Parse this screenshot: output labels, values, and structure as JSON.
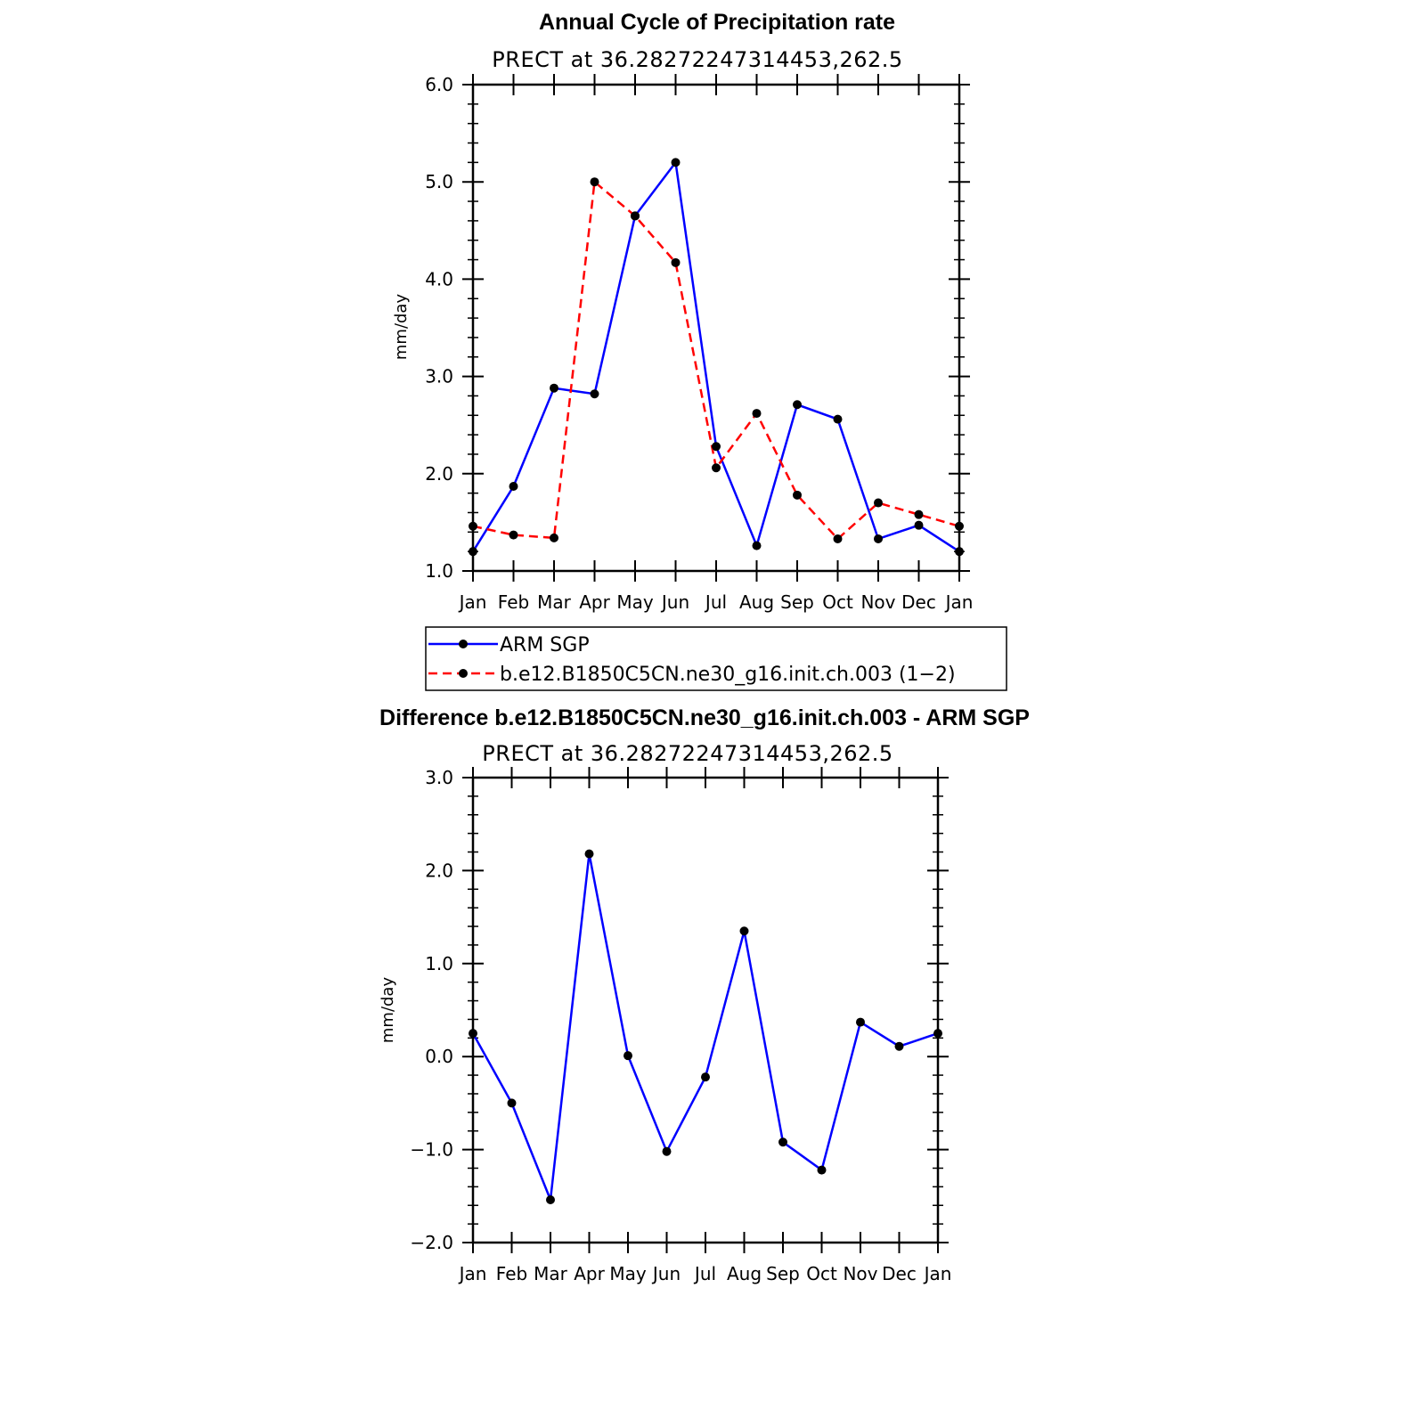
{
  "chart_data": [
    {
      "type": "line",
      "title": "Annual Cycle of Precipitation rate",
      "subtitle": "PRECT at 36.28272247314453,262.5",
      "ylabel": "mm/day",
      "ylim": [
        1.0,
        6.0
      ],
      "yticks": [
        "1.0",
        "2.0",
        "3.0",
        "4.0",
        "5.0",
        "6.0"
      ],
      "categories": [
        "Jan",
        "Feb",
        "Mar",
        "Apr",
        "May",
        "Jun",
        "Jul",
        "Aug",
        "Sep",
        "Oct",
        "Nov",
        "Dec",
        "Jan"
      ],
      "series": [
        {
          "name": "ARM SGP",
          "color": "#0000ff",
          "dash": "solid",
          "values": [
            1.2,
            1.87,
            2.88,
            2.82,
            4.65,
            5.2,
            2.28,
            1.26,
            2.71,
            2.56,
            1.33,
            1.47,
            1.2
          ]
        },
        {
          "name": "b.e12.B1850C5CN.ne30_g16.init.ch.003 (1−2)",
          "color": "#ff0000",
          "dash": "dashed",
          "values": [
            1.46,
            1.37,
            1.34,
            5.0,
            4.65,
            4.17,
            2.06,
            2.62,
            1.78,
            1.33,
            1.7,
            1.58,
            1.46
          ]
        }
      ],
      "legend": "below"
    },
    {
      "type": "line",
      "title": "Difference b.e12.B1850C5CN.ne30_g16.init.ch.003 - ARM SGP",
      "subtitle": "PRECT at 36.28272247314453,262.5",
      "ylabel": "mm/day",
      "ylim": [
        -2.0,
        3.0
      ],
      "yticks": [
        "−2.0",
        "−1.0",
        "0.0",
        "1.0",
        "2.0",
        "3.0"
      ],
      "categories": [
        "Jan",
        "Feb",
        "Mar",
        "Apr",
        "May",
        "Jun",
        "Jul",
        "Aug",
        "Sep",
        "Oct",
        "Nov",
        "Dec",
        "Jan"
      ],
      "series": [
        {
          "color": "#0000ff",
          "dash": "solid",
          "values": [
            0.25,
            -0.5,
            -1.54,
            2.18,
            0.01,
            -1.02,
            -0.22,
            1.35,
            -0.92,
            -1.22,
            0.37,
            0.11,
            0.25
          ]
        }
      ]
    }
  ]
}
